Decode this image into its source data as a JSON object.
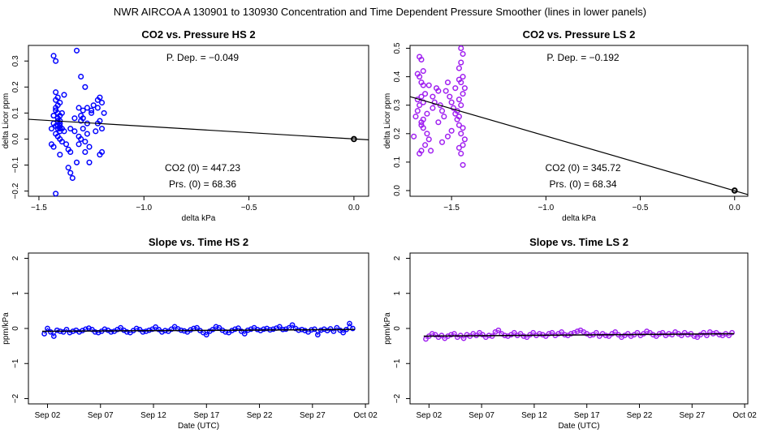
{
  "suptitle": "NWR   AIRCOA A   130901 to 130930   Concentration and Time Dependent Pressure Smoother (lines in lower panels)",
  "panels": {
    "hs_pressure": {
      "title": "CO2 vs. Pressure HS 2",
      "xlabel": "delta kPa",
      "ylabel": "delta Licor ppm",
      "p_dep": "P. Dep. =  −0.049",
      "co2_0": "CO2 (0) =  447.23",
      "prs_0": "Prs. (0) =  68.36",
      "xticks": [
        "−1.5",
        "−1.0",
        "−0.5",
        "0.0"
      ],
      "yticks": [
        "−0.2",
        "−0.1",
        "0.0",
        "0.1",
        "0.2",
        "0.3"
      ]
    },
    "ls_pressure": {
      "title": "CO2 vs. Pressure LS 2",
      "xlabel": "delta kPa",
      "ylabel": "delta Licor ppm",
      "p_dep": "P. Dep. =  −0.192",
      "co2_0": "CO2 (0) =  345.72",
      "prs_0": "Prs. (0) =  68.34",
      "xticks": [
        "−1.5",
        "−1.0",
        "−0.5",
        "0.0"
      ],
      "yticks": [
        "0.0",
        "0.1",
        "0.2",
        "0.3",
        "0.4",
        "0.5"
      ]
    },
    "hs_slope": {
      "title": "Slope vs. Time HS 2",
      "xlabel": "Date (UTC)",
      "ylabel": "ppm/kPa",
      "xticks": [
        "Sep 02",
        "Sep 07",
        "Sep 12",
        "Sep 17",
        "Sep 22",
        "Sep 27",
        "Oct 02"
      ],
      "yticks": [
        "−2",
        "−1",
        "0",
        "1",
        "2"
      ]
    },
    "ls_slope": {
      "title": "Slope vs. Time LS 2",
      "xlabel": "Date (UTC)",
      "ylabel": "ppm/kPa",
      "xticks": [
        "Sep 02",
        "Sep 07",
        "Sep 12",
        "Sep 17",
        "Sep 22",
        "Sep 27",
        "Oct 02"
      ],
      "yticks": [
        "−2",
        "−1",
        "0",
        "1",
        "2"
      ]
    }
  },
  "colors": {
    "hs": "#0000ff",
    "ls": "#a020f0",
    "line": "#000000"
  },
  "chart_data": [
    {
      "type": "scatter",
      "id": "hs_pressure",
      "title": "CO2 vs. Pressure HS 2",
      "xlabel": "delta kPa",
      "ylabel": "delta Licor ppm",
      "xlim": [
        -1.55,
        0.07
      ],
      "ylim": [
        -0.22,
        0.36
      ],
      "x": [
        -1.43,
        -1.42,
        -1.42,
        -1.41,
        -1.41,
        -1.4,
        -1.4,
        -1.39,
        -1.38,
        -1.42,
        -1.41,
        -1.4,
        -1.43,
        -1.44,
        -1.42,
        -1.41,
        -1.4,
        -1.39,
        -1.37,
        -1.36,
        -1.35,
        -1.42,
        -1.41,
        -1.4,
        -1.38,
        -1.43,
        -1.41,
        -1.4,
        -1.39,
        -1.42,
        -1.41,
        -1.43,
        -1.44,
        -1.4,
        -1.42,
        -1.41,
        -1.4,
        -1.32,
        -1.3,
        -1.28,
        -1.31,
        -1.29,
        -1.33,
        -1.3,
        -1.27,
        -1.29,
        -1.31,
        -1.28,
        -1.26,
        -1.25,
        -1.24,
        -1.27,
        -1.3,
        -1.32,
        -1.35,
        -1.34,
        -1.36,
        -1.33,
        -1.31,
        -1.28,
        -1.26,
        -1.22,
        -1.21,
        -1.2,
        -1.22,
        -1.19,
        -1.21,
        -1.2,
        -1.23,
        -1.22,
        -1.2,
        -1.21,
        -1.42,
        -1.3,
        -1.29,
        -1.25,
        -1.27,
        -1.43,
        -1.4,
        -1.35
      ],
      "y": [
        0.32,
        0.15,
        0.12,
        0.1,
        0.08,
        0.07,
        0.05,
        0.04,
        0.03,
        0.3,
        0.13,
        0.09,
        0.06,
        0.04,
        0.02,
        0.01,
        0.0,
        -0.01,
        -0.02,
        -0.04,
        -0.05,
        0.18,
        0.16,
        0.14,
        0.17,
        0.09,
        0.07,
        0.06,
        0.1,
        0.11,
        0.05,
        -0.03,
        -0.02,
        -0.06,
        -0.21,
        0.04,
        0.03,
        0.34,
        0.24,
        0.2,
        0.12,
        0.11,
        0.08,
        0.07,
        0.06,
        0.04,
        0.01,
        -0.01,
        -0.03,
        0.1,
        0.13,
        0.02,
        0.0,
        -0.09,
        -0.13,
        -0.15,
        -0.11,
        0.03,
        -0.02,
        -0.05,
        -0.09,
        0.15,
        0.16,
        0.14,
        0.12,
        0.1,
        0.07,
        0.04,
        0.03,
        0.06,
        -0.05,
        -0.06,
        0.05,
        0.09,
        0.08,
        0.11,
        0.12,
        0.09,
        0.04,
        0.04
      ],
      "fit": {
        "x": [
          -1.55,
          0.07
        ],
        "y": [
          0.076,
          -0.003
        ]
      },
      "origin_point": [
        0.0,
        0.0
      ]
    },
    {
      "type": "scatter",
      "id": "ls_pressure",
      "title": "CO2 vs. Pressure LS 2",
      "xlabel": "delta kPa",
      "ylabel": "delta Licor ppm",
      "xlim": [
        -1.72,
        0.07
      ],
      "ylim": [
        -0.02,
        0.51
      ],
      "x": [
        -1.67,
        -1.66,
        -1.65,
        -1.68,
        -1.67,
        -1.66,
        -1.65,
        -1.64,
        -1.66,
        -1.65,
        -1.67,
        -1.68,
        -1.69,
        -1.66,
        -1.65,
        -1.63,
        -1.62,
        -1.64,
        -1.61,
        -1.6,
        -1.63,
        -1.65,
        -1.66,
        -1.67,
        -1.66,
        -1.58,
        -1.57,
        -1.6,
        -1.59,
        -1.56,
        -1.55,
        -1.54,
        -1.57,
        -1.53,
        -1.52,
        -1.51,
        -1.5,
        -1.49,
        -1.48,
        -1.47,
        -1.46,
        -1.45,
        -1.44,
        -1.45,
        -1.46,
        -1.44,
        -1.45,
        -1.43,
        -1.44,
        -1.46,
        -1.45,
        -1.47,
        -1.46,
        -1.44,
        -1.45,
        -1.43,
        -1.44,
        -1.46,
        -1.45,
        -1.44,
        -1.46,
        -1.5,
        -1.52,
        -1.55,
        -1.48,
        -1.62,
        -1.68,
        -1.7
      ],
      "y": [
        0.47,
        0.46,
        0.42,
        0.41,
        0.4,
        0.38,
        0.37,
        0.34,
        0.33,
        0.31,
        0.3,
        0.28,
        0.26,
        0.24,
        0.22,
        0.2,
        0.18,
        0.16,
        0.14,
        0.29,
        0.27,
        0.25,
        0.23,
        0.13,
        0.14,
        0.36,
        0.35,
        0.33,
        0.31,
        0.3,
        0.28,
        0.26,
        0.24,
        0.35,
        0.38,
        0.33,
        0.31,
        0.29,
        0.27,
        0.25,
        0.23,
        0.5,
        0.48,
        0.45,
        0.43,
        0.4,
        0.38,
        0.36,
        0.34,
        0.32,
        0.3,
        0.28,
        0.26,
        0.22,
        0.2,
        0.18,
        0.16,
        0.15,
        0.13,
        0.09,
        0.39,
        0.21,
        0.19,
        0.17,
        0.36,
        0.37,
        0.32,
        0.19
      ],
      "fit": {
        "x": [
          -1.72,
          0.07
        ],
        "y": [
          0.33,
          -0.014
        ]
      },
      "origin_point": [
        0.0,
        0.0
      ]
    },
    {
      "type": "line",
      "id": "hs_slope",
      "title": "Slope vs. Time HS 2",
      "xlabel": "Date (UTC)",
      "ylabel": "ppm/kPa",
      "xlim": [
        -0.8,
        31.3
      ],
      "ylim": [
        -2.15,
        2.15
      ],
      "x_tick_days": [
        1,
        6,
        11,
        16,
        21,
        26,
        31
      ],
      "x": [
        0.7,
        1.0,
        1.3,
        1.6,
        1.9,
        2.2,
        2.5,
        2.8,
        3.1,
        3.4,
        3.7,
        4.0,
        4.3,
        4.6,
        4.9,
        5.2,
        5.5,
        5.8,
        6.1,
        6.4,
        6.7,
        7.0,
        7.3,
        7.6,
        7.9,
        8.2,
        8.5,
        8.8,
        9.1,
        9.4,
        9.7,
        10.0,
        10.3,
        10.6,
        10.9,
        11.2,
        11.5,
        11.8,
        12.1,
        12.4,
        12.7,
        13.0,
        13.3,
        13.6,
        13.9,
        14.2,
        14.5,
        14.8,
        15.1,
        15.4,
        15.7,
        16.0,
        16.3,
        16.6,
        16.9,
        17.2,
        17.5,
        17.8,
        18.1,
        18.4,
        18.7,
        19.0,
        19.3,
        19.6,
        19.9,
        20.2,
        20.5,
        20.8,
        21.1,
        21.4,
        21.7,
        22.0,
        22.3,
        22.6,
        22.9,
        23.2,
        23.5,
        23.8,
        24.1,
        24.4,
        24.7,
        25.0,
        25.3,
        25.6,
        25.9,
        26.2,
        26.5,
        26.8,
        27.1,
        27.4,
        27.7,
        28.0,
        28.3,
        28.6,
        28.9,
        29.2,
        29.5,
        29.8
      ],
      "y": [
        -0.15,
        0.0,
        -0.1,
        -0.22,
        -0.05,
        -0.08,
        -0.1,
        -0.03,
        -0.12,
        -0.08,
        -0.05,
        -0.1,
        -0.06,
        -0.02,
        0.01,
        -0.03,
        -0.1,
        -0.12,
        -0.08,
        -0.02,
        -0.05,
        -0.1,
        -0.08,
        -0.03,
        0.02,
        -0.05,
        -0.1,
        -0.12,
        -0.06,
        0.0,
        -0.03,
        -0.1,
        -0.08,
        -0.05,
        -0.02,
        0.04,
        -0.03,
        -0.1,
        -0.06,
        -0.08,
        -0.02,
        0.05,
        -0.01,
        -0.05,
        -0.07,
        -0.1,
        -0.04,
        0.0,
        0.02,
        -0.06,
        -0.12,
        -0.18,
        -0.08,
        -0.03,
        0.05,
        0.02,
        -0.05,
        -0.1,
        -0.12,
        -0.06,
        -0.02,
        0.01,
        -0.08,
        -0.15,
        -0.05,
        -0.02,
        0.02,
        -0.03,
        -0.06,
        -0.02,
        0.0,
        -0.04,
        -0.02,
        0.01,
        0.05,
        -0.03,
        -0.02,
        0.02,
        0.1,
        0.0,
        -0.05,
        -0.03,
        -0.06,
        -0.1,
        -0.04,
        -0.02,
        -0.18,
        -0.05,
        -0.02,
        -0.06,
        -0.01,
        -0.08,
        0.02,
        -0.05,
        -0.12,
        -0.03,
        0.14,
        0.0
      ],
      "smoother": {
        "x": [
          0.5,
          30.0
        ],
        "y": [
          -0.08,
          -0.03
        ]
      }
    },
    {
      "type": "line",
      "id": "ls_slope",
      "title": "Slope vs. Time LS 2",
      "xlabel": "Date (UTC)",
      "ylabel": "ppm/kPa",
      "xlim": [
        -0.8,
        31.3
      ],
      "ylim": [
        -2.15,
        2.15
      ],
      "x_tick_days": [
        1,
        6,
        11,
        16,
        21,
        26,
        31
      ],
      "x": [
        0.7,
        1.0,
        1.3,
        1.6,
        1.9,
        2.2,
        2.5,
        2.8,
        3.1,
        3.4,
        3.7,
        4.0,
        4.3,
        4.6,
        4.9,
        5.2,
        5.5,
        5.8,
        6.1,
        6.4,
        6.7,
        7.0,
        7.3,
        7.6,
        7.9,
        8.2,
        8.5,
        8.8,
        9.1,
        9.4,
        9.7,
        10.0,
        10.3,
        10.6,
        10.9,
        11.2,
        11.5,
        11.8,
        12.1,
        12.4,
        12.7,
        13.0,
        13.3,
        13.6,
        13.9,
        14.2,
        14.5,
        14.8,
        15.1,
        15.4,
        15.7,
        16.0,
        16.3,
        16.6,
        16.9,
        17.2,
        17.5,
        17.8,
        18.1,
        18.4,
        18.7,
        19.0,
        19.3,
        19.6,
        19.9,
        20.2,
        20.5,
        20.8,
        21.1,
        21.4,
        21.7,
        22.0,
        22.3,
        22.6,
        22.9,
        23.2,
        23.5,
        23.8,
        24.1,
        24.4,
        24.7,
        25.0,
        25.3,
        25.6,
        25.9,
        26.2,
        26.5,
        26.8,
        27.1,
        27.4,
        27.7,
        28.0,
        28.3,
        28.6,
        28.9,
        29.2,
        29.5,
        29.8
      ],
      "y": [
        -0.3,
        -0.22,
        -0.15,
        -0.18,
        -0.25,
        -0.2,
        -0.28,
        -0.22,
        -0.18,
        -0.15,
        -0.25,
        -0.2,
        -0.28,
        -0.18,
        -0.22,
        -0.15,
        -0.2,
        -0.12,
        -0.18,
        -0.25,
        -0.2,
        -0.22,
        -0.1,
        -0.05,
        -0.15,
        -0.2,
        -0.22,
        -0.18,
        -0.12,
        -0.2,
        -0.15,
        -0.22,
        -0.25,
        -0.18,
        -0.12,
        -0.2,
        -0.15,
        -0.18,
        -0.22,
        -0.15,
        -0.12,
        -0.2,
        -0.15,
        -0.1,
        -0.18,
        -0.2,
        -0.15,
        -0.12,
        -0.08,
        -0.05,
        -0.1,
        -0.15,
        -0.2,
        -0.18,
        -0.12,
        -0.22,
        -0.15,
        -0.2,
        -0.22,
        -0.15,
        -0.1,
        -0.18,
        -0.25,
        -0.2,
        -0.15,
        -0.22,
        -0.18,
        -0.12,
        -0.2,
        -0.15,
        -0.08,
        -0.12,
        -0.18,
        -0.22,
        -0.15,
        -0.12,
        -0.2,
        -0.15,
        -0.18,
        -0.1,
        -0.15,
        -0.2,
        -0.12,
        -0.18,
        -0.15,
        -0.22,
        -0.25,
        -0.18,
        -0.12,
        -0.2,
        -0.1,
        -0.15,
        -0.12,
        -0.18,
        -0.2,
        -0.15,
        -0.2,
        -0.12
      ],
      "smoother": {
        "x": [
          0.5,
          30.0
        ],
        "y": [
          -0.22,
          -0.15
        ]
      }
    }
  ]
}
